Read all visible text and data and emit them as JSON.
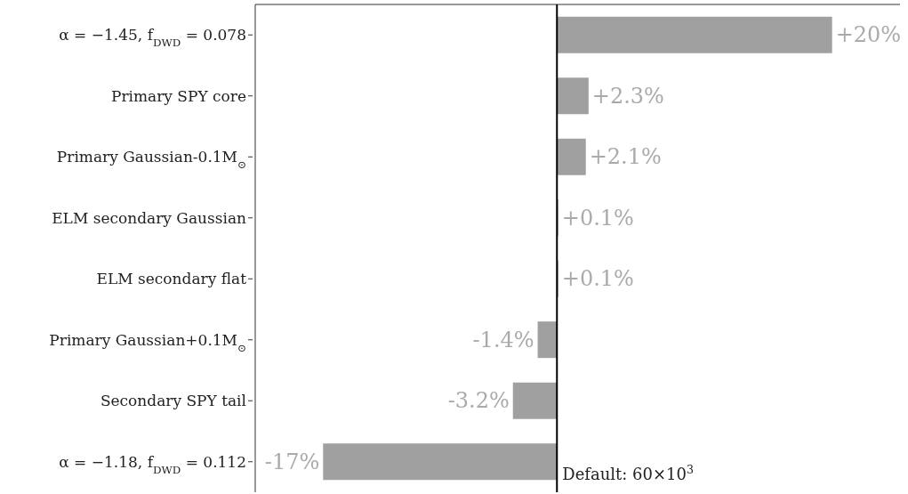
{
  "chart_data": {
    "type": "bar",
    "orientation": "horizontal",
    "tick_labels": "y",
    "categories": [
      "α = −1.45, f$_{DWD}$ = 0.078",
      "Primary SPY core",
      "Primary Gaussian-0.1M$_{⊙}$",
      "ELM secondary Gaussian",
      "ELM secondary flat",
      "Primary Gaussian+0.1M$_{⊙}$",
      "Secondary SPY tail",
      "α = −1.18, f$_{DWD}$ = 0.112"
    ],
    "values": [
      20,
      2.3,
      2.1,
      0.1,
      0.1,
      -1.4,
      -3.2,
      -17
    ],
    "value_labels": [
      "+20%",
      "+2.3%",
      "+2.1%",
      "+0.1%",
      "+0.1%",
      "-1.4%",
      "-3.2%",
      "-17%"
    ],
    "color": "#a0a0a0",
    "ref_lines": [
      {
        "axis": "x",
        "value": 0,
        "color": "#000000"
      }
    ],
    "annotations": [
      {
        "text": "Default: 60×10$^{3}$",
        "x": 0
      }
    ],
    "grid": false,
    "legend": false
  }
}
